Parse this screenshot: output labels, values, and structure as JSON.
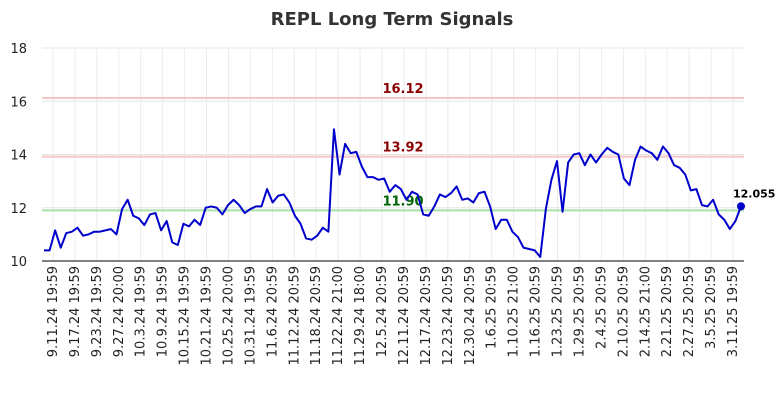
{
  "chart_data": {
    "type": "line",
    "title": "REPL Long Term Signals",
    "xlabel": "",
    "ylabel": "",
    "ylim": [
      10,
      18
    ],
    "yticks": [
      "10",
      "12",
      "14",
      "16",
      "18"
    ],
    "grid": true,
    "x_ticks": [
      "9.11.24 19:59",
      "9.17.24 19:59",
      "9.23.24 19:59",
      "9.27.24 20:00",
      "10.3.24 19:59",
      "10.9.24 19:59",
      "10.15.24 19:59",
      "10.21.24 19:59",
      "10.25.24 20:00",
      "10.31.24 19:59",
      "11.6.24 20:59",
      "11.12.24 20:59",
      "11.18.24 20:59",
      "11.22.24 21:00",
      "11.29.24 18:00",
      "12.5.24 20:59",
      "12.11.24 20:59",
      "12.17.24 20:59",
      "12.23.24 20:59",
      "12.30.24 20:59",
      "1.6.25 20:59",
      "1.10.25 21:00",
      "1.16.25 20:59",
      "1.23.25 20:59",
      "1.29.25 20:59",
      "2.4.25 20:59",
      "2.10.25 20:59",
      "2.14.25 21:00",
      "2.21.25 20:59",
      "2.27.25 20:59",
      "3.5.25 20:59",
      "3.11.25 19:59"
    ],
    "reference_lines": [
      {
        "label": "16.12",
        "value": 16.12,
        "color": "#f4c7c7",
        "label_color": "#8b0000"
      },
      {
        "label": "13.92",
        "value": 13.92,
        "color": "#f4c7c7",
        "label_color": "#8b0000"
      },
      {
        "label": "11.90",
        "value": 11.9,
        "color": "#a9dfa9",
        "label_color": "#006400"
      }
    ],
    "series": [
      {
        "color": "#0000cc",
        "values": [
          10.4,
          10.4,
          11.15,
          10.5,
          11.05,
          11.1,
          11.25,
          10.95,
          11.0,
          11.1,
          11.1,
          11.15,
          11.2,
          11.0,
          11.95,
          12.3,
          11.7,
          11.6,
          11.35,
          11.75,
          11.8,
          11.15,
          11.5,
          10.7,
          10.6,
          11.4,
          11.3,
          11.55,
          11.35,
          12.0,
          12.05,
          12.0,
          11.75,
          12.1,
          12.3,
          12.1,
          11.8,
          11.95,
          12.05,
          12.05,
          12.7,
          12.2,
          12.45,
          12.5,
          12.2,
          11.7,
          11.4,
          10.85,
          10.8,
          10.95,
          11.25,
          11.1,
          14.95,
          13.25,
          14.4,
          14.05,
          14.1,
          13.55,
          13.15,
          13.15,
          13.05,
          13.1,
          12.6,
          12.85,
          12.7,
          12.3,
          12.6,
          12.5,
          11.75,
          11.7,
          12.05,
          12.5,
          12.4,
          12.55,
          12.8,
          12.3,
          12.35,
          12.2,
          12.55,
          12.6,
          12.05,
          11.2,
          11.55,
          11.55,
          11.1,
          10.9,
          10.5,
          10.45,
          10.4,
          10.15,
          11.95,
          13.05,
          13.75,
          11.85,
          13.7,
          14.0,
          14.05,
          13.6,
          14.0,
          13.7,
          14.0,
          14.25,
          14.1,
          14.0,
          13.1,
          12.85,
          13.8,
          14.3,
          14.15,
          14.05,
          13.8,
          14.3,
          14.05,
          13.6,
          13.5,
          13.25,
          12.65,
          12.7,
          12.1,
          12.05,
          12.3,
          11.75,
          11.55,
          11.2,
          11.5,
          12.055
        ]
      }
    ],
    "last_point": {
      "label": "12.055",
      "value": 12.055
    }
  }
}
